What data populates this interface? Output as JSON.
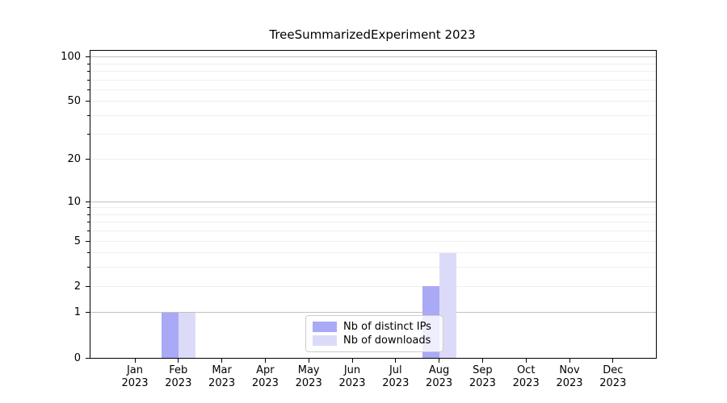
{
  "title": "TreeSummarizedExperiment 2023",
  "chart_data": {
    "type": "bar",
    "title": "TreeSummarizedExperiment 2023",
    "xlabel": "",
    "ylabel": "",
    "categories": [
      "Jan 2023",
      "Feb 2023",
      "Mar 2023",
      "Apr 2023",
      "May 2023",
      "Jun 2023",
      "Jul 2023",
      "Aug 2023",
      "Sep 2023",
      "Oct 2023",
      "Nov 2023",
      "Dec 2023"
    ],
    "x_tick_months": [
      "Jan",
      "Feb",
      "Mar",
      "Apr",
      "May",
      "Jun",
      "Jul",
      "Aug",
      "Sep",
      "Oct",
      "Nov",
      "Dec"
    ],
    "x_tick_year": "2023",
    "series": [
      {
        "name": "Nb of distinct IPs",
        "color": "#a9a9f5",
        "values": [
          0,
          1,
          0,
          0,
          0,
          0,
          0,
          2,
          0,
          0,
          0,
          0
        ]
      },
      {
        "name": "Nb of downloads",
        "color": "#dbdbf9",
        "values": [
          0,
          1,
          0,
          0,
          0,
          0,
          0,
          4,
          0,
          0,
          0,
          0
        ]
      }
    ],
    "yscale": "log1p",
    "ylim": [
      0,
      110
    ],
    "yticks": [
      0,
      1,
      2,
      5,
      10,
      20,
      50,
      100
    ],
    "major_gridlines": [
      1,
      10,
      100
    ],
    "minor_gridlines": [
      2,
      3,
      4,
      5,
      6,
      7,
      8,
      9,
      20,
      30,
      40,
      50,
      60,
      70,
      80,
      90
    ],
    "grid": true,
    "legend_position": "lower center inside"
  },
  "legend": {
    "items": [
      {
        "label": "Nb of distinct IPs",
        "color": "#a9a9f5"
      },
      {
        "label": "Nb of downloads",
        "color": "#dbdbf9"
      }
    ]
  },
  "colors": {
    "background": "#ffffff",
    "spine": "#000000",
    "major_grid": "#c0c0c0",
    "minor_grid": "#efefef",
    "legend_border": "#cccccc"
  }
}
